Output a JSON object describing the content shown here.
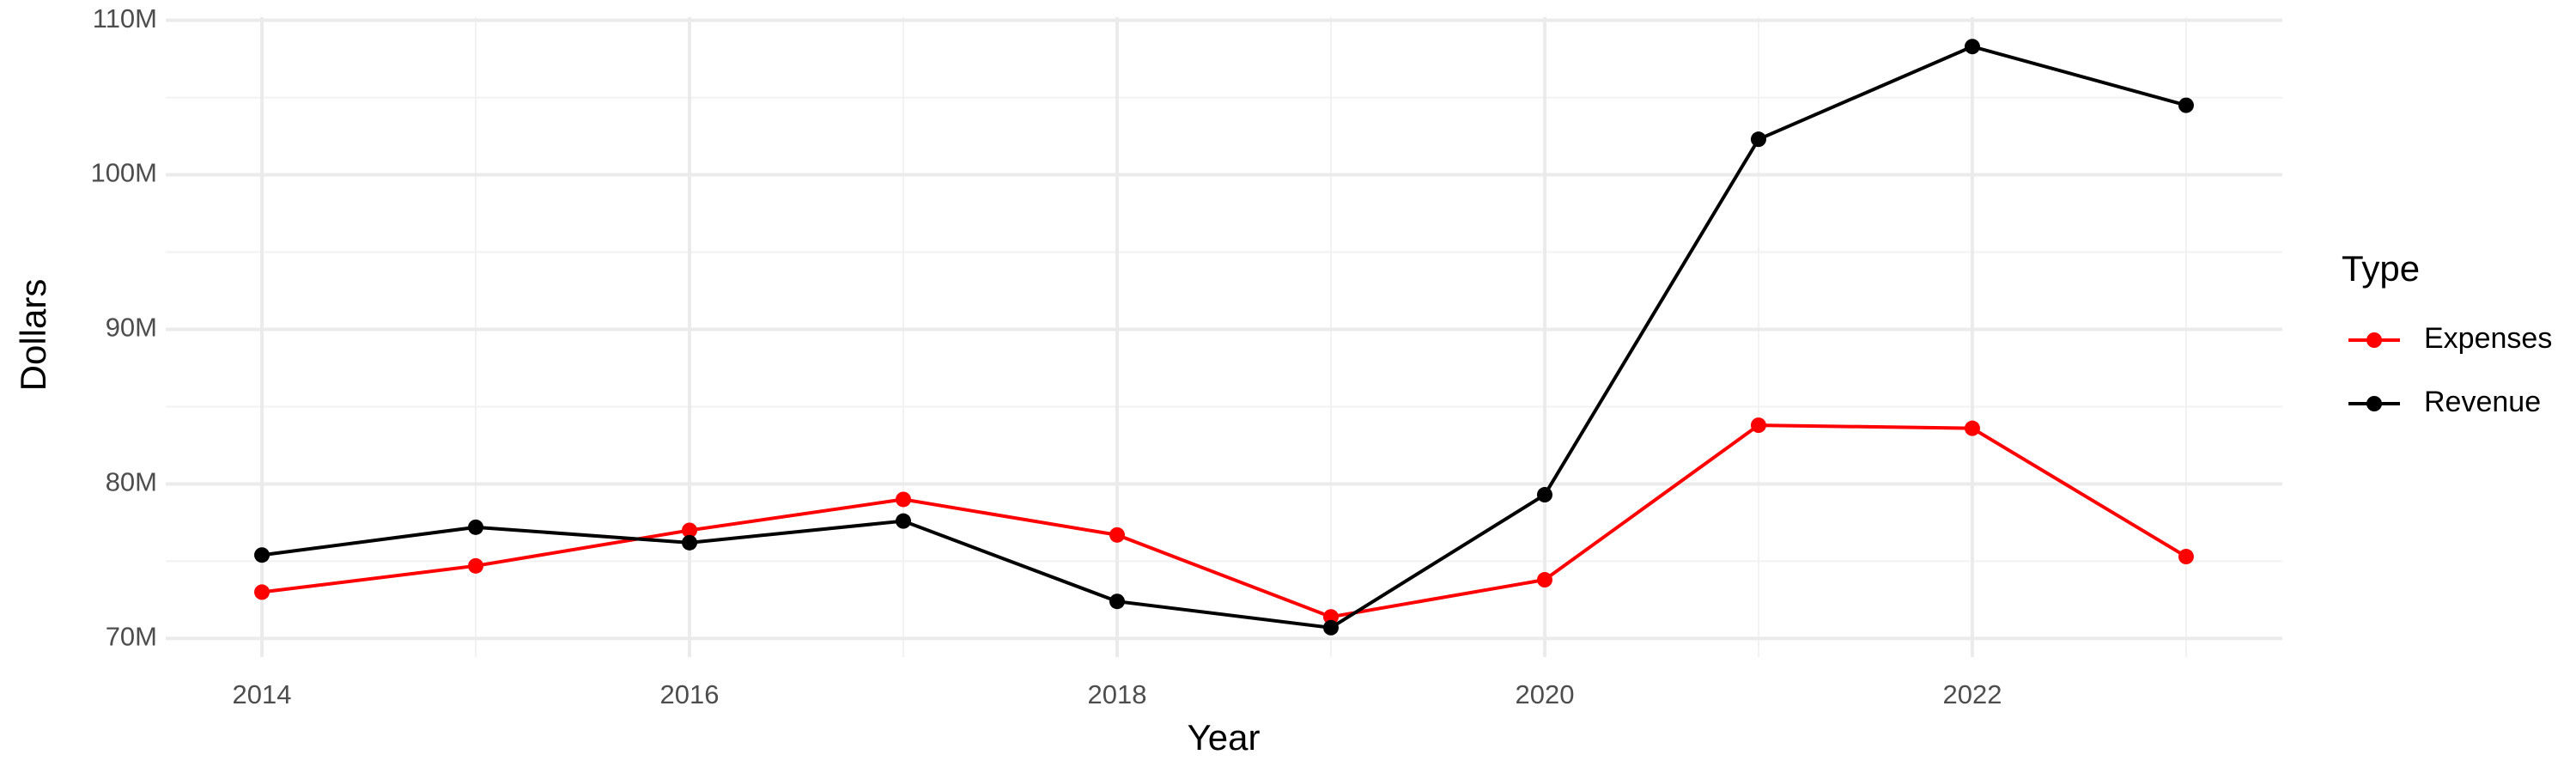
{
  "chart_data": {
    "type": "line",
    "x_label": "Year",
    "y_label": "Dollars",
    "legend_title": "Type",
    "legend_position": "right",
    "grid": true,
    "x": [
      2014,
      2015,
      2016,
      2017,
      2018,
      2019,
      2020,
      2021,
      2022,
      2023
    ],
    "series": [
      {
        "name": "Expenses",
        "color": "#ff0000",
        "values": [
          73000000,
          74700000,
          77000000,
          79000000,
          76700000,
          71400000,
          73800000,
          83800000,
          83600000,
          75300000
        ]
      },
      {
        "name": "Revenue",
        "color": "#000000",
        "values": [
          75400000,
          77200000,
          76200000,
          77600000,
          72400000,
          70700000,
          79300000,
          102300000,
          108300000,
          104500000
        ]
      }
    ],
    "xlim": [
      2013.55,
      2023.45
    ],
    "xticks": [
      2014,
      2016,
      2018,
      2020,
      2022
    ],
    "ylim": [
      68800000,
      110200000
    ],
    "yticks": [
      {
        "value": 70000000,
        "label": "70M"
      },
      {
        "value": 80000000,
        "label": "80M"
      },
      {
        "value": 90000000,
        "label": "90M"
      },
      {
        "value": 100000000,
        "label": "100M"
      },
      {
        "value": 110000000,
        "label": "110M"
      }
    ]
  }
}
